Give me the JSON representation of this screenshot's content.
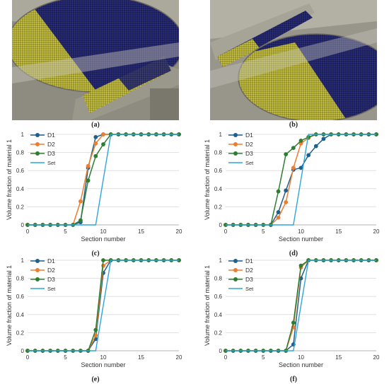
{
  "panel_labels": {
    "a": "(a)",
    "b": "(b)",
    "c": "(c)",
    "d": "(d)",
    "e": "(e)",
    "f": "(f)"
  },
  "colors": {
    "D1": "#1f5f8b",
    "D2": "#ed7d31",
    "D3": "#2e7d32",
    "Set": "#2ea6d9",
    "yellow_particles": "#c9c23a",
    "blue_particles": "#23266b"
  },
  "images": {
    "a": {
      "description_icon": "simulation-render-icon"
    },
    "b": {
      "description_icon": "simulation-render-icon"
    }
  },
  "chart_data": [
    {
      "id": "c",
      "type": "line",
      "xlabel": "Section number",
      "ylabel": "Volume fraction of material 1",
      "xlim": [
        0,
        20
      ],
      "ylim": [
        0,
        1
      ],
      "xticks": [
        0,
        5,
        10,
        15,
        20
      ],
      "yticks": [
        0,
        0.2,
        0.4,
        0.6,
        0.8,
        1
      ],
      "ytick_labels": [
        "0",
        "0.2",
        "0.4",
        "0.6",
        "0.8",
        "1"
      ],
      "legend_position": "top-left",
      "x": [
        0,
        1,
        2,
        3,
        4,
        5,
        6,
        7,
        8,
        9,
        10,
        11,
        12,
        13,
        14,
        15,
        16,
        17,
        18,
        19,
        20
      ],
      "series": [
        {
          "name": "D1",
          "values": [
            0,
            0,
            0,
            0,
            0,
            0,
            0,
            0.03,
            0.63,
            0.97,
            1,
            1,
            1,
            1,
            1,
            1,
            1,
            1,
            1,
            1,
            1
          ]
        },
        {
          "name": "D2",
          "values": [
            0,
            0,
            0,
            0,
            0,
            0,
            0,
            0.26,
            0.65,
            0.9,
            1,
            1,
            1,
            1,
            1,
            1,
            1,
            1,
            1,
            1,
            1
          ]
        },
        {
          "name": "D3",
          "values": [
            0,
            0,
            0,
            0,
            0,
            0,
            0,
            0.05,
            0.49,
            0.76,
            0.89,
            1,
            1,
            1,
            1,
            1,
            1,
            1,
            1,
            1,
            1
          ]
        },
        {
          "name": "Set",
          "line_only": true,
          "x": [
            0,
            9,
            11,
            20
          ],
          "values": [
            0,
            0,
            1,
            1
          ]
        }
      ]
    },
    {
      "id": "d",
      "type": "line",
      "xlabel": "Section number",
      "ylabel": "Volume fraction of material 1",
      "xlim": [
        0,
        20
      ],
      "ylim": [
        0,
        1
      ],
      "xticks": [
        0,
        5,
        10,
        15,
        20
      ],
      "yticks": [
        0,
        0.2,
        0.4,
        0.6,
        0.8,
        1
      ],
      "ytick_labels": [
        "0",
        "0.2",
        "0.4",
        "0.6",
        "0.8",
        "1"
      ],
      "legend_position": "top-left",
      "x": [
        0,
        1,
        2,
        3,
        4,
        5,
        6,
        7,
        8,
        9,
        10,
        11,
        12,
        13,
        14,
        15,
        16,
        17,
        18,
        19,
        20
      ],
      "series": [
        {
          "name": "D1",
          "values": [
            0,
            0,
            0,
            0,
            0,
            0,
            0,
            0.14,
            0.38,
            0.61,
            0.63,
            0.77,
            0.87,
            0.95,
            1,
            1,
            1,
            1,
            1,
            1,
            1
          ]
        },
        {
          "name": "D2",
          "values": [
            0,
            0,
            0,
            0,
            0,
            0,
            0,
            0.08,
            0.25,
            0.63,
            0.9,
            0.96,
            1,
            1,
            1,
            1,
            1,
            1,
            1,
            1,
            1
          ]
        },
        {
          "name": "D3",
          "values": [
            0,
            0,
            0,
            0,
            0,
            0,
            0,
            0.37,
            0.78,
            0.85,
            0.93,
            0.97,
            1,
            1,
            1,
            1,
            1,
            1,
            1,
            1,
            1
          ]
        },
        {
          "name": "Set",
          "line_only": true,
          "x": [
            0,
            9,
            11,
            20
          ],
          "values": [
            0,
            0,
            1,
            1
          ]
        }
      ]
    },
    {
      "id": "e",
      "type": "line",
      "xlabel": "Section number",
      "ylabel": "Volume fraction of material 1",
      "xlim": [
        0,
        20
      ],
      "ylim": [
        0,
        1
      ],
      "xticks": [
        0,
        5,
        10,
        15,
        20
      ],
      "yticks": [
        0,
        0.2,
        0.4,
        0.6,
        0.8,
        1
      ],
      "ytick_labels": [
        "0",
        "0.2",
        "0.4",
        "0.6",
        "0.8",
        "1"
      ],
      "legend_position": "top-left",
      "x": [
        0,
        1,
        2,
        3,
        4,
        5,
        6,
        7,
        8,
        9,
        10,
        11,
        12,
        13,
        14,
        15,
        16,
        17,
        18,
        19,
        20
      ],
      "series": [
        {
          "name": "D1",
          "values": [
            0,
            0,
            0,
            0,
            0,
            0,
            0,
            0,
            0,
            0.13,
            0.86,
            1,
            1,
            1,
            1,
            1,
            1,
            1,
            1,
            1,
            1
          ]
        },
        {
          "name": "D2",
          "values": [
            0,
            0,
            0,
            0,
            0,
            0,
            0,
            0,
            0,
            0.17,
            0.94,
            1,
            1,
            1,
            1,
            1,
            1,
            1,
            1,
            1,
            1
          ]
        },
        {
          "name": "D3",
          "values": [
            0,
            0,
            0,
            0,
            0,
            0,
            0,
            0,
            0,
            0.23,
            1,
            1,
            1,
            1,
            1,
            1,
            1,
            1,
            1,
            1,
            1
          ]
        },
        {
          "name": "Set",
          "line_only": true,
          "x": [
            0,
            9,
            11,
            20
          ],
          "values": [
            0,
            0,
            1,
            1
          ]
        }
      ]
    },
    {
      "id": "f",
      "type": "line",
      "xlabel": "Section number",
      "ylabel": "Volume fraction of material 1",
      "xlim": [
        0,
        20
      ],
      "ylim": [
        0,
        1
      ],
      "xticks": [
        0,
        5,
        10,
        15,
        20
      ],
      "yticks": [
        0,
        0.2,
        0.4,
        0.6,
        0.8,
        1
      ],
      "ytick_labels": [
        "0",
        "0.2",
        "0.4",
        "0.6",
        "0.8",
        "1"
      ],
      "legend_position": "top-left",
      "x": [
        0,
        1,
        2,
        3,
        4,
        5,
        6,
        7,
        8,
        9,
        10,
        11,
        12,
        13,
        14,
        15,
        16,
        17,
        18,
        19,
        20
      ],
      "series": [
        {
          "name": "D1",
          "values": [
            0,
            0,
            0,
            0,
            0,
            0,
            0,
            0,
            0,
            0.07,
            0.8,
            1,
            1,
            1,
            1,
            1,
            1,
            1,
            1,
            1,
            1
          ]
        },
        {
          "name": "D2",
          "values": [
            0,
            0,
            0,
            0,
            0,
            0,
            0,
            0,
            0,
            0.26,
            0.92,
            1,
            1,
            1,
            1,
            1,
            1,
            1,
            1,
            1,
            1
          ]
        },
        {
          "name": "D3",
          "values": [
            0,
            0,
            0,
            0,
            0,
            0,
            0,
            0,
            0,
            0.31,
            0.94,
            1,
            1,
            1,
            1,
            1,
            1,
            1,
            1,
            1,
            1
          ]
        },
        {
          "name": "Set",
          "line_only": true,
          "x": [
            0,
            9,
            11,
            20
          ],
          "values": [
            0,
            0,
            1,
            1
          ]
        }
      ]
    }
  ]
}
